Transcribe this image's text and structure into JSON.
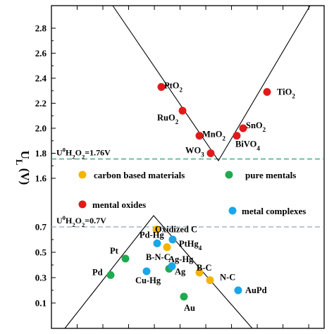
{
  "chart_data": {
    "type": "scatter",
    "title": "",
    "xlabel": "",
    "ylabel": "U_L (V)",
    "ylabel_main": "U",
    "ylabel_sub": "L",
    "ylabel_unit": " (V)",
    "grid": false,
    "y_ticks_upper": [
      "2.8",
      "2.6",
      "2.4",
      "2.2",
      "2.0",
      "1.8",
      "1.6"
    ],
    "y_ticks_lower": [
      "0.7",
      "0.5",
      "0.3",
      "0.1"
    ],
    "reference_lines": [
      {
        "label": "U⁰H₂O₂=1.76V",
        "value": 1.76,
        "color": "#26a37a"
      },
      {
        "label": "U⁰H₂O₂=0.7V",
        "value": 0.7,
        "color": "#8aa8b8"
      }
    ],
    "legend": [
      {
        "name": "carbon based materials",
        "color": "#f4b400"
      },
      {
        "name": "pure mentals",
        "color": "#1faa4f"
      },
      {
        "name": "mental oxides",
        "color": "#e01b1b"
      },
      {
        "name": "metal complexes",
        "color": "#1aa6e8"
      }
    ],
    "series": [
      {
        "name": "mental oxides",
        "color": "#e01b1b",
        "points": [
          {
            "label": "PtO₂",
            "y": 2.33
          },
          {
            "label": "RuO₂",
            "y": 2.14
          },
          {
            "label": "MnO₂",
            "y": 1.94
          },
          {
            "label": "WO₃",
            "y": 1.8
          },
          {
            "label": "TiO₂",
            "y": 2.29
          },
          {
            "label": "SnO₂",
            "y": 2.0
          },
          {
            "label": "BiVO₄",
            "y": 1.94
          }
        ]
      },
      {
        "name": "carbon based materials",
        "color": "#f4b400",
        "points": [
          {
            "label": "Oxidized C",
            "y": 0.68
          },
          {
            "label": "B-N-C",
            "y": 0.54
          },
          {
            "label": "B-C",
            "y": 0.34
          },
          {
            "label": "N-C",
            "y": 0.28
          }
        ]
      },
      {
        "name": "pure mentals",
        "color": "#1faa4f",
        "points": [
          {
            "label": "Pd",
            "y": 0.32
          },
          {
            "label": "Pt",
            "y": 0.45
          },
          {
            "label": "Ag",
            "y": 0.37
          },
          {
            "label": "Au",
            "y": 0.15
          }
        ]
      },
      {
        "name": "metal complexes",
        "color": "#1aa6e8",
        "points": [
          {
            "label": "Pd-Hg",
            "y": 0.57
          },
          {
            "label": "PtHg₄",
            "y": 0.6
          },
          {
            "label": "Ag-Hg",
            "y": 0.39
          },
          {
            "label": "Cu-Hg",
            "y": 0.35
          },
          {
            "label": "AuPd",
            "y": 0.2
          }
        ]
      }
    ]
  }
}
